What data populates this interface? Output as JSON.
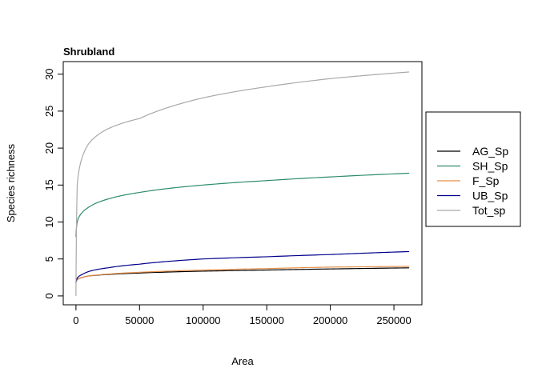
{
  "chart_data": {
    "type": "line",
    "title": "Shrubland",
    "xlabel": "Area",
    "ylabel": "Species richness",
    "xlim": [
      -10000,
      272000
    ],
    "ylim": [
      -1.2,
      31.7
    ],
    "xticks": [
      0,
      50000,
      100000,
      150000,
      200000,
      250000
    ],
    "xtick_labels": [
      "0",
      "50000",
      "100000",
      "150000",
      "200000",
      "250000"
    ],
    "yticks": [
      0,
      5,
      10,
      15,
      20,
      25,
      30
    ],
    "ytick_labels": [
      "0",
      "5",
      "10",
      "15",
      "20",
      "25",
      "30"
    ],
    "grid": false,
    "legend_position": "right",
    "x": [
      0,
      1000,
      5000,
      10000,
      25000,
      50000,
      100000,
      150000,
      200000,
      262000
    ],
    "series": [
      {
        "name": "AG_Sp",
        "color": "#000000",
        "values": [
          1.8,
          2.2,
          2.5,
          2.7,
          2.9,
          3.1,
          3.35,
          3.5,
          3.65,
          3.8
        ]
      },
      {
        "name": "SH_Sp",
        "color": "#2E8B6E",
        "values": [
          8.0,
          10.0,
          11.3,
          12.0,
          13.1,
          14.0,
          15.0,
          15.6,
          16.1,
          16.6
        ]
      },
      {
        "name": "F_Sp",
        "color": "#E8914A",
        "values": [
          1.8,
          2.2,
          2.5,
          2.7,
          2.95,
          3.2,
          3.5,
          3.7,
          3.9,
          4.0
        ]
      },
      {
        "name": "UB_Sp",
        "color": "#00008B",
        "values": [
          1.8,
          2.4,
          2.9,
          3.3,
          3.8,
          4.3,
          5.0,
          5.3,
          5.6,
          6.0
        ]
      },
      {
        "name": "Tot_sp",
        "color": "#A9A9A9",
        "values": [
          0,
          15.0,
          18.8,
          20.6,
          22.6,
          24.0,
          26.8,
          28.3,
          29.4,
          30.3
        ]
      }
    ]
  }
}
